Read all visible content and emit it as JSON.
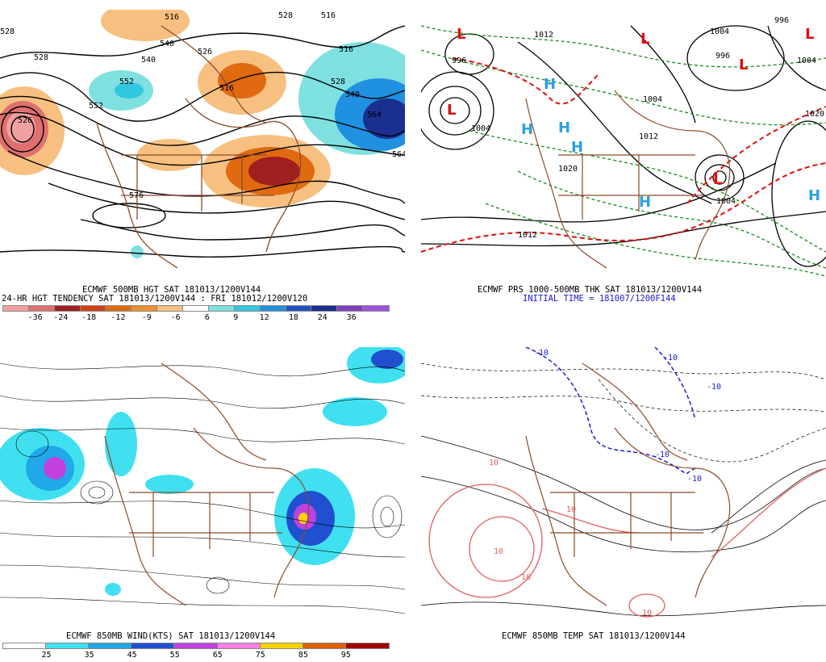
{
  "panels": {
    "hgt": {
      "title": "ECMWF 500MB HGT SAT 181013/1200V144",
      "subtitle": "24-HR HGT TENDENCY SAT 181013/1200V144 : FRI 181012/1200V120",
      "contour_labels": [
        "528",
        "516",
        "528",
        "528",
        "516",
        "540",
        "552",
        "540",
        "516",
        "528",
        "540",
        "564",
        "576",
        "516",
        "526",
        "552",
        "564",
        "526"
      ],
      "colorbar": {
        "labels": [
          "-36",
          "-24",
          "-18",
          "-12",
          "-9",
          "-6",
          "6",
          "9",
          "12",
          "18",
          "24",
          "36"
        ],
        "colors": [
          "#f2a0a0",
          "#e07070",
          "#a02020",
          "#d04010",
          "#e06a10",
          "#f09030",
          "#f7c080",
          "#ffffff",
          "#7fe0e0",
          "#30c8e0",
          "#2090e0",
          "#2050c0",
          "#1a2f90",
          "#7f40c0",
          "#a050e0"
        ]
      }
    },
    "prs": {
      "title": "ECMWF PRS 1000-500MB THK SAT 181013/1200V144",
      "subtitle": "INITIAL TIME = 181007/1200F144",
      "isobar_labels": [
        "996",
        "1012",
        "996",
        "1004",
        "1004",
        "1004",
        "996",
        "1004",
        "1012",
        "1020",
        "1004",
        "1012",
        "1020"
      ],
      "highs": [
        "H",
        "H",
        "H",
        "H",
        "H",
        "H"
      ],
      "lows": [
        "L",
        "L",
        "L",
        "L",
        "L",
        "L"
      ]
    },
    "wind": {
      "title": "ECMWF 850MB WIND(KTS) SAT 181013/1200V144",
      "colorbar": {
        "labels": [
          "25",
          "35",
          "45",
          "55",
          "65",
          "75",
          "85",
          "95"
        ],
        "colors": [
          "#ffffff",
          "#40e0f0",
          "#20a8e8",
          "#2050d0",
          "#c040e0",
          "#ff80e0",
          "#ffd000",
          "#e06000",
          "#a00000"
        ]
      }
    },
    "temp": {
      "title": "ECMWF 850MB TEMP SAT 181013/1200V144",
      "isotherm_labels": [
        "-10",
        "-10",
        "-10",
        "-10",
        "-10",
        "10",
        "10",
        "10",
        "10",
        "10"
      ]
    }
  },
  "colors": {
    "coastline": "#8b4a2a",
    "isobar": "#000000",
    "thickness_cold": "#1a8a1a",
    "thickness_warm": "#e01010",
    "high_marker": "#2aa0e0",
    "low_marker": "#e01010",
    "cold_isotherm": "#1a1acc",
    "warm_isotherm": "#e06060"
  }
}
